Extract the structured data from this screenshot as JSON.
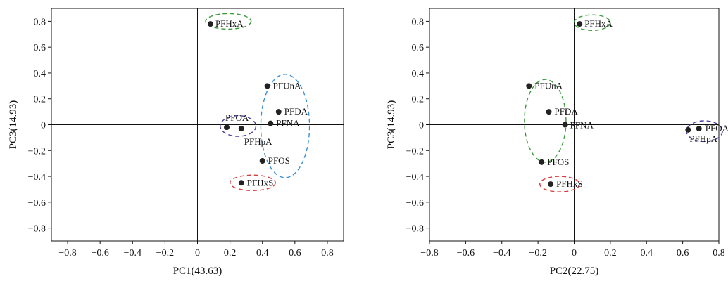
{
  "chart_data": [
    {
      "type": "scatter",
      "xlabel": "PC1(43.63)",
      "ylabel": "PC3(14.93)",
      "xlim": [
        -0.9,
        0.9
      ],
      "ylim": [
        -0.9,
        0.9
      ],
      "xticks": [
        -0.8,
        -0.6,
        -0.4,
        -0.2,
        0,
        0.2,
        0.4,
        0.6,
        0.8
      ],
      "yticks": [
        -0.8,
        -0.6,
        -0.4,
        -0.2,
        0,
        0.2,
        0.4,
        0.6,
        0.8
      ],
      "xtick_labels": [
        "−0.8",
        "−0.6",
        "−0.4",
        "−0.2",
        "0",
        "0.2",
        "0.4",
        "0.6",
        "0.8"
      ],
      "ytick_labels": [
        "−0.8",
        "−0.6",
        "−0.4",
        "−0.2",
        "0",
        "0.2",
        "0.4",
        "0.6",
        "0.8"
      ],
      "grid": false,
      "points": [
        {
          "label": "PFHxA",
          "x": 0.08,
          "y": 0.78
        },
        {
          "label": "PFUnA",
          "x": 0.43,
          "y": 0.3
        },
        {
          "label": "PFDA",
          "x": 0.5,
          "y": 0.1
        },
        {
          "label": "PFNA",
          "x": 0.45,
          "y": 0.01
        },
        {
          "label": "PFOA",
          "x": 0.18,
          "y": -0.02
        },
        {
          "label": "PFHpA",
          "x": 0.27,
          "y": -0.03
        },
        {
          "label": "PFOS",
          "x": 0.4,
          "y": -0.28
        },
        {
          "label": "PFHxS",
          "x": 0.27,
          "y": -0.45
        }
      ],
      "groups": [
        {
          "color": "#3a9a3a",
          "members": [
            "PFHxA"
          ],
          "cx": 0.19,
          "cy": 0.8,
          "rx": 0.14,
          "ry": 0.06,
          "rot": 0
        },
        {
          "color": "#3b8fd0",
          "members": [
            "PFUnA",
            "PFDA",
            "PFNA",
            "PFOS"
          ],
          "cx": 0.54,
          "cy": -0.01,
          "rx": 0.15,
          "ry": 0.4,
          "rot": 0
        },
        {
          "color": "#4a3fa0",
          "members": [
            "PFOA",
            "PFHpA"
          ],
          "cx": 0.25,
          "cy": -0.01,
          "rx": 0.11,
          "ry": 0.08,
          "rot": 0
        },
        {
          "color": "#d93a3a",
          "members": [
            "PFHxS"
          ],
          "cx": 0.34,
          "cy": -0.45,
          "rx": 0.14,
          "ry": 0.06,
          "rot": 0
        }
      ]
    },
    {
      "type": "scatter",
      "xlabel": "PC2(22.75)",
      "ylabel": "PC3(14.93)",
      "xlim": [
        -0.8,
        0.8
      ],
      "ylim": [
        -0.9,
        0.9
      ],
      "xticks": [
        -0.8,
        -0.6,
        -0.4,
        -0.2,
        0,
        0.2,
        0.4,
        0.6,
        0.8
      ],
      "yticks": [
        -0.8,
        -0.6,
        -0.4,
        -0.2,
        0,
        0.2,
        0.4,
        0.6,
        0.8
      ],
      "xtick_labels": [
        "−0.8",
        "−0.6",
        "−0.4",
        "−0.2",
        "0",
        "0.2",
        "0.4",
        "0.6",
        "0.8"
      ],
      "ytick_labels": [
        "−0.8",
        "−0.6",
        "−0.4",
        "−0.2",
        "0",
        "0.2",
        "0.4",
        "0.6",
        "0.8"
      ],
      "grid": false,
      "points": [
        {
          "label": "PFHxA",
          "x": 0.03,
          "y": 0.78
        },
        {
          "label": "PFUnA",
          "x": -0.25,
          "y": 0.3
        },
        {
          "label": "PFDA",
          "x": -0.14,
          "y": 0.1
        },
        {
          "label": "PFNA",
          "x": -0.05,
          "y": 0.0
        },
        {
          "label": "PFOA",
          "x": 0.69,
          "y": -0.03
        },
        {
          "label": "PFHpA",
          "x": 0.63,
          "y": -0.04
        },
        {
          "label": "PFOS",
          "x": -0.18,
          "y": -0.29
        },
        {
          "label": "PFHxS",
          "x": -0.13,
          "y": -0.46
        }
      ],
      "groups": [
        {
          "color": "#3a9a3a",
          "members": [
            "PFHxA"
          ],
          "cx": 0.1,
          "cy": 0.79,
          "rx": 0.1,
          "ry": 0.06,
          "rot": 0
        },
        {
          "color": "#3a9a3a",
          "members": [
            "PFUnA",
            "PFDA",
            "PFNA",
            "PFOS"
          ],
          "cx": -0.16,
          "cy": 0.03,
          "rx": 0.115,
          "ry": 0.32,
          "rot": 0
        },
        {
          "color": "#4a3fa0",
          "members": [
            "PFOA",
            "PFHpA"
          ],
          "cx": 0.72,
          "cy": -0.05,
          "rx": 0.1,
          "ry": 0.08,
          "rot": 0
        },
        {
          "color": "#d93a3a",
          "members": [
            "PFHxS"
          ],
          "cx": -0.08,
          "cy": -0.46,
          "rx": 0.11,
          "ry": 0.06,
          "rot": 0
        }
      ]
    }
  ]
}
